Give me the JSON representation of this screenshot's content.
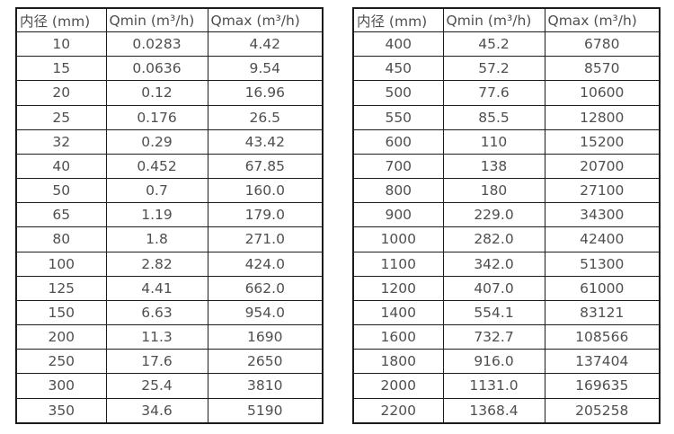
{
  "tables": [
    {
      "name": "flow-table-small-diameters",
      "columns": [
        {
          "key": "diameter",
          "label": "内径 (mm)"
        },
        {
          "key": "qmin",
          "label": "Qmin (m³/h)"
        },
        {
          "key": "qmax",
          "label": "Qmax (m³/h)"
        }
      ],
      "rows": [
        [
          "10",
          "0.0283",
          "4.42"
        ],
        [
          "15",
          "0.0636",
          "9.54"
        ],
        [
          "20",
          "0.12",
          "16.96"
        ],
        [
          "25",
          "0.176",
          "26.5"
        ],
        [
          "32",
          "0.29",
          "43.42"
        ],
        [
          "40",
          "0.452",
          "67.85"
        ],
        [
          "50",
          "0.7",
          "160.0"
        ],
        [
          "65",
          "1.19",
          "179.0"
        ],
        [
          "80",
          "1.8",
          "271.0"
        ],
        [
          "100",
          "2.82",
          "424.0"
        ],
        [
          "125",
          "4.41",
          "662.0"
        ],
        [
          "150",
          "6.63",
          "954.0"
        ],
        [
          "200",
          "11.3",
          "1690"
        ],
        [
          "250",
          "17.6",
          "2650"
        ],
        [
          "300",
          "25.4",
          "3810"
        ],
        [
          "350",
          "34.6",
          "5190"
        ]
      ]
    },
    {
      "name": "flow-table-large-diameters",
      "columns": [
        {
          "key": "diameter",
          "label": "内径 (mm)"
        },
        {
          "key": "qmin",
          "label": "Qmin (m³/h)"
        },
        {
          "key": "qmax",
          "label": "Qmax (m³/h)"
        }
      ],
      "rows": [
        [
          "400",
          "45.2",
          "6780"
        ],
        [
          "450",
          "57.2",
          "8570"
        ],
        [
          "500",
          "77.6",
          "10600"
        ],
        [
          "550",
          "85.5",
          "12800"
        ],
        [
          "600",
          "110",
          "15200"
        ],
        [
          "700",
          "138",
          "20700"
        ],
        [
          "800",
          "180",
          "27100"
        ],
        [
          "900",
          "229.0",
          "34300"
        ],
        [
          "1000",
          "282.0",
          "42400"
        ],
        [
          "1100",
          "342.0",
          "51300"
        ],
        [
          "1200",
          "407.0",
          "61000"
        ],
        [
          "1400",
          "554.1",
          "83121"
        ],
        [
          "1600",
          "732.7",
          "108566"
        ],
        [
          "1800",
          "916.0",
          "137404"
        ],
        [
          "2000",
          "1131.0",
          "169635"
        ],
        [
          "2200",
          "1368.4",
          "205258"
        ]
      ]
    }
  ]
}
